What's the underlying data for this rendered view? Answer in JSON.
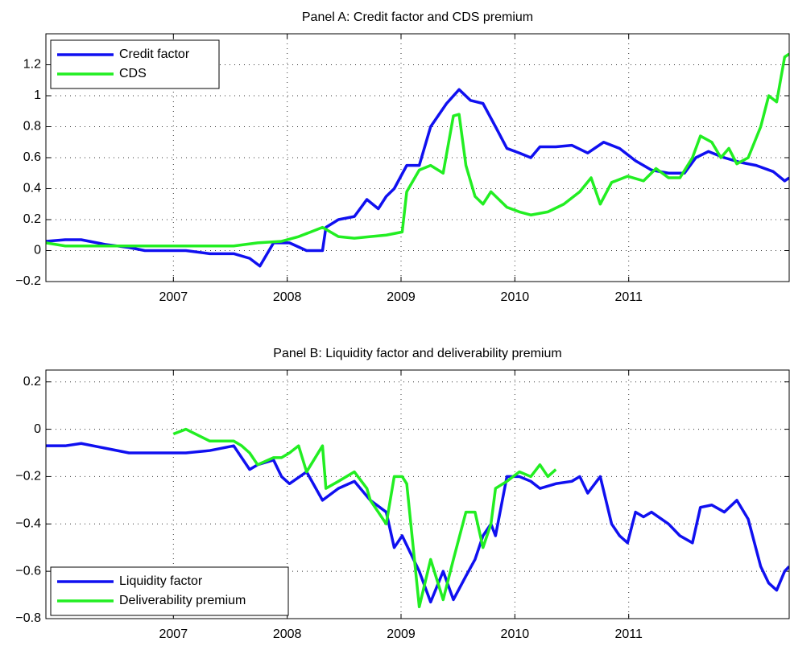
{
  "chart_data": [
    {
      "type": "line",
      "title": "Panel A: Credit factor and CDS premium",
      "xlim": [
        2005.88,
        2012.41
      ],
      "xticks": [
        2007,
        2008,
        2009,
        2010,
        2011
      ],
      "ylim": [
        -0.2,
        1.4
      ],
      "yticks": [
        {
          "value": -0.2,
          "label": "−0.2"
        },
        0,
        0.2,
        0.4,
        0.6,
        0.8,
        1,
        1.2
      ],
      "grid": true,
      "legend": "upper left",
      "series": [
        {
          "name": "Credit factor",
          "color": "#1010f0",
          "x": [
            2005.88,
            2006.05,
            2006.19,
            2006.4,
            2006.61,
            2006.75,
            2006.89,
            2007.11,
            2007.32,
            2007.53,
            2007.67,
            2007.76,
            2007.88,
            2008.02,
            2008.17,
            2008.31,
            2008.34,
            2008.45,
            2008.59,
            2008.7,
            2008.8,
            2008.87,
            2008.94,
            2009.05,
            2009.16,
            2009.26,
            2009.4,
            2009.51,
            2009.61,
            2009.72,
            2009.83,
            2009.93,
            2010.04,
            2010.14,
            2010.22,
            2010.36,
            2010.5,
            2010.64,
            2010.78,
            2010.92,
            2011.06,
            2011.2,
            2011.35,
            2011.49,
            2011.59,
            2011.7,
            2011.84,
            2011.98,
            2012.12,
            2012.27,
            2012.37,
            2012.41
          ],
          "values": [
            0.06,
            0.07,
            0.07,
            0.04,
            0.02,
            0.0,
            0.0,
            0.0,
            -0.02,
            -0.02,
            -0.05,
            -0.1,
            0.05,
            0.05,
            0.0,
            0.0,
            0.15,
            0.2,
            0.22,
            0.33,
            0.27,
            0.35,
            0.4,
            0.55,
            0.55,
            0.8,
            0.95,
            1.04,
            0.97,
            0.95,
            0.8,
            0.66,
            0.63,
            0.6,
            0.67,
            0.67,
            0.68,
            0.63,
            0.7,
            0.66,
            0.58,
            0.52,
            0.5,
            0.5,
            0.6,
            0.64,
            0.6,
            0.57,
            0.55,
            0.51,
            0.45,
            0.47
          ]
        },
        {
          "name": "CDS",
          "color": "#22ee22",
          "x": [
            2005.88,
            2006.05,
            2006.54,
            2006.89,
            2007.32,
            2007.53,
            2007.74,
            2007.95,
            2008.1,
            2008.31,
            2008.45,
            2008.59,
            2008.73,
            2008.87,
            2009.01,
            2009.05,
            2009.16,
            2009.26,
            2009.37,
            2009.46,
            2009.51,
            2009.57,
            2009.65,
            2009.72,
            2009.79,
            2009.93,
            2010.04,
            2010.14,
            2010.29,
            2010.43,
            2010.57,
            2010.67,
            2010.75,
            2010.85,
            2010.99,
            2011.13,
            2011.24,
            2011.35,
            2011.45,
            2011.56,
            2011.63,
            2011.73,
            2011.81,
            2011.88,
            2011.95,
            2012.05,
            2012.16,
            2012.23,
            2012.3,
            2012.37,
            2012.41
          ],
          "values": [
            0.05,
            0.03,
            0.03,
            0.03,
            0.03,
            0.03,
            0.05,
            0.06,
            0.09,
            0.15,
            0.09,
            0.08,
            0.09,
            0.1,
            0.12,
            0.38,
            0.52,
            0.55,
            0.5,
            0.87,
            0.88,
            0.55,
            0.35,
            0.3,
            0.38,
            0.28,
            0.25,
            0.23,
            0.25,
            0.3,
            0.38,
            0.47,
            0.3,
            0.44,
            0.48,
            0.45,
            0.53,
            0.47,
            0.47,
            0.6,
            0.74,
            0.7,
            0.6,
            0.66,
            0.56,
            0.6,
            0.8,
            1.0,
            0.96,
            1.25,
            1.27
          ]
        }
      ]
    },
    {
      "type": "line",
      "title": "Panel B: Liquidity factor and deliverability premium",
      "xlim": [
        2005.88,
        2012.41
      ],
      "xticks": [
        2007,
        2008,
        2009,
        2010,
        2011
      ],
      "ylim": [
        -0.8,
        0.25
      ],
      "yticks": [
        {
          "value": -0.8,
          "label": "−0.8"
        },
        {
          "value": -0.6,
          "label": "−0.6"
        },
        {
          "value": -0.4,
          "label": "−0.4"
        },
        {
          "value": -0.2,
          "label": "−0.2"
        },
        0,
        0.2
      ],
      "grid": true,
      "legend": "lower left",
      "series": [
        {
          "name": "Liquidity factor",
          "color": "#1010f0",
          "x": [
            2005.88,
            2006.05,
            2006.19,
            2006.4,
            2006.61,
            2006.89,
            2007.11,
            2007.32,
            2007.53,
            2007.67,
            2007.74,
            2007.88,
            2007.95,
            2008.02,
            2008.17,
            2008.31,
            2008.45,
            2008.59,
            2008.73,
            2008.87,
            2008.94,
            2009.01,
            2009.16,
            2009.26,
            2009.37,
            2009.46,
            2009.57,
            2009.65,
            2009.72,
            2009.79,
            2009.83,
            2009.93,
            2010.04,
            2010.14,
            2010.22,
            2010.36,
            2010.5,
            2010.57,
            2010.64,
            2010.75,
            2010.85,
            2010.92,
            2010.99,
            2011.06,
            2011.13,
            2011.2,
            2011.35,
            2011.45,
            2011.56,
            2011.63,
            2011.73,
            2011.84,
            2011.95,
            2012.05,
            2012.16,
            2012.23,
            2012.3,
            2012.37,
            2012.41
          ],
          "values": [
            -0.07,
            -0.07,
            -0.06,
            -0.08,
            -0.1,
            -0.1,
            -0.1,
            -0.09,
            -0.07,
            -0.17,
            -0.15,
            -0.13,
            -0.2,
            -0.23,
            -0.18,
            -0.3,
            -0.25,
            -0.22,
            -0.3,
            -0.35,
            -0.5,
            -0.45,
            -0.6,
            -0.73,
            -0.6,
            -0.72,
            -0.62,
            -0.55,
            -0.45,
            -0.4,
            -0.45,
            -0.2,
            -0.2,
            -0.22,
            -0.25,
            -0.23,
            -0.22,
            -0.2,
            -0.27,
            -0.2,
            -0.4,
            -0.45,
            -0.48,
            -0.35,
            -0.37,
            -0.35,
            -0.4,
            -0.45,
            -0.48,
            -0.33,
            -0.32,
            -0.35,
            -0.3,
            -0.38,
            -0.58,
            -0.65,
            -0.68,
            -0.6,
            -0.58
          ]
        },
        {
          "name": "Deliverability premium",
          "color": "#22ee22",
          "x": [
            2007.0,
            2007.11,
            2007.32,
            2007.53,
            2007.6,
            2007.67,
            2007.74,
            2007.88,
            2007.95,
            2008.02,
            2008.1,
            2008.17,
            2008.31,
            2008.34,
            2008.45,
            2008.59,
            2008.7,
            2008.73,
            2008.8,
            2008.87,
            2008.94,
            2009.01,
            2009.05,
            2009.16,
            2009.26,
            2009.37,
            2009.46,
            2009.57,
            2009.65,
            2009.72,
            2009.79,
            2009.83,
            2009.93,
            2010.04,
            2010.14,
            2010.22,
            2010.29,
            2010.36
          ],
          "values": [
            -0.02,
            0.0,
            -0.05,
            -0.05,
            -0.07,
            -0.1,
            -0.15,
            -0.12,
            -0.12,
            -0.1,
            -0.07,
            -0.18,
            -0.07,
            -0.25,
            -0.22,
            -0.18,
            -0.25,
            -0.3,
            -0.35,
            -0.4,
            -0.2,
            -0.2,
            -0.23,
            -0.75,
            -0.55,
            -0.72,
            -0.55,
            -0.35,
            -0.35,
            -0.5,
            -0.4,
            -0.25,
            -0.22,
            -0.18,
            -0.2,
            -0.15,
            -0.2,
            -0.17
          ]
        }
      ]
    }
  ]
}
